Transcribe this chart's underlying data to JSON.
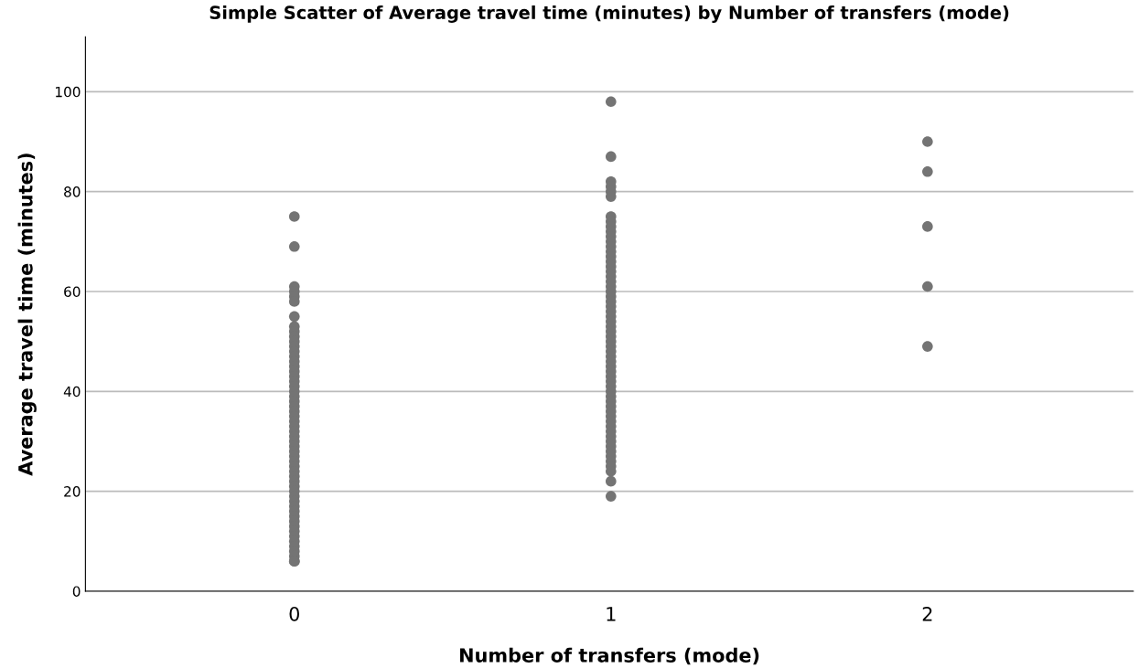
{
  "chart_data": {
    "type": "scatter",
    "title": "Simple Scatter of Average travel time (minutes) by Number of transfers (mode)",
    "xlabel": "Number of transfers (mode)",
    "ylabel": "Average travel time (minutes)",
    "series": [
      {
        "color": "#747474",
        "x": [
          0,
          0,
          0,
          0,
          0,
          0,
          0,
          0,
          0,
          0,
          0,
          0,
          0,
          0,
          0,
          0,
          0,
          0,
          0,
          0,
          0,
          0,
          0,
          0,
          0,
          0,
          0,
          0,
          0,
          0,
          0,
          0,
          0,
          0,
          0,
          0,
          0,
          0,
          0,
          0,
          0,
          0,
          0,
          0,
          0,
          0,
          0,
          0,
          0,
          0,
          0,
          0,
          0,
          0,
          0,
          0,
          1,
          1,
          1,
          1,
          1,
          1,
          1,
          1,
          1,
          1,
          1,
          1,
          1,
          1,
          1,
          1,
          1,
          1,
          1,
          1,
          1,
          1,
          1,
          1,
          1,
          1,
          1,
          1,
          1,
          1,
          1,
          1,
          1,
          1,
          1,
          1,
          1,
          1,
          1,
          1,
          1,
          1,
          1,
          1,
          1,
          1,
          1,
          1,
          1,
          1,
          1,
          1,
          1,
          1,
          1,
          1,
          1,
          1,
          1,
          1,
          2,
          2,
          2,
          2,
          2
        ],
        "values": [
          75,
          69,
          61,
          60,
          59,
          58,
          55,
          53,
          52,
          51,
          50,
          49,
          48,
          47,
          46,
          45,
          44,
          43,
          42,
          41,
          40,
          39,
          38,
          37,
          36,
          35,
          34,
          33,
          32,
          31,
          30,
          29,
          28,
          27,
          26,
          25,
          24,
          23,
          22,
          21,
          20,
          19,
          18,
          17,
          16,
          15,
          14,
          13,
          12,
          11,
          10,
          9,
          8,
          7,
          6,
          6,
          98,
          87,
          82,
          81,
          80,
          79,
          75,
          74,
          73,
          72,
          71,
          70,
          69,
          68,
          67,
          66,
          65,
          64,
          63,
          62,
          61,
          60,
          59,
          58,
          57,
          56,
          55,
          54,
          53,
          52,
          51,
          50,
          49,
          48,
          47,
          46,
          45,
          44,
          43,
          42,
          41,
          40,
          39,
          38,
          37,
          36,
          35,
          34,
          33,
          32,
          31,
          30,
          29,
          28,
          27,
          26,
          25,
          24,
          22,
          19,
          90,
          84,
          73,
          61,
          49
        ]
      }
    ],
    "xlim": [
      -0.66,
      2.65
    ],
    "xticks": [
      0,
      1,
      2
    ],
    "ylim": [
      0,
      111
    ],
    "yticks": [
      0,
      20,
      40,
      60,
      80,
      100
    ],
    "grid": "y",
    "marker": "circle"
  }
}
